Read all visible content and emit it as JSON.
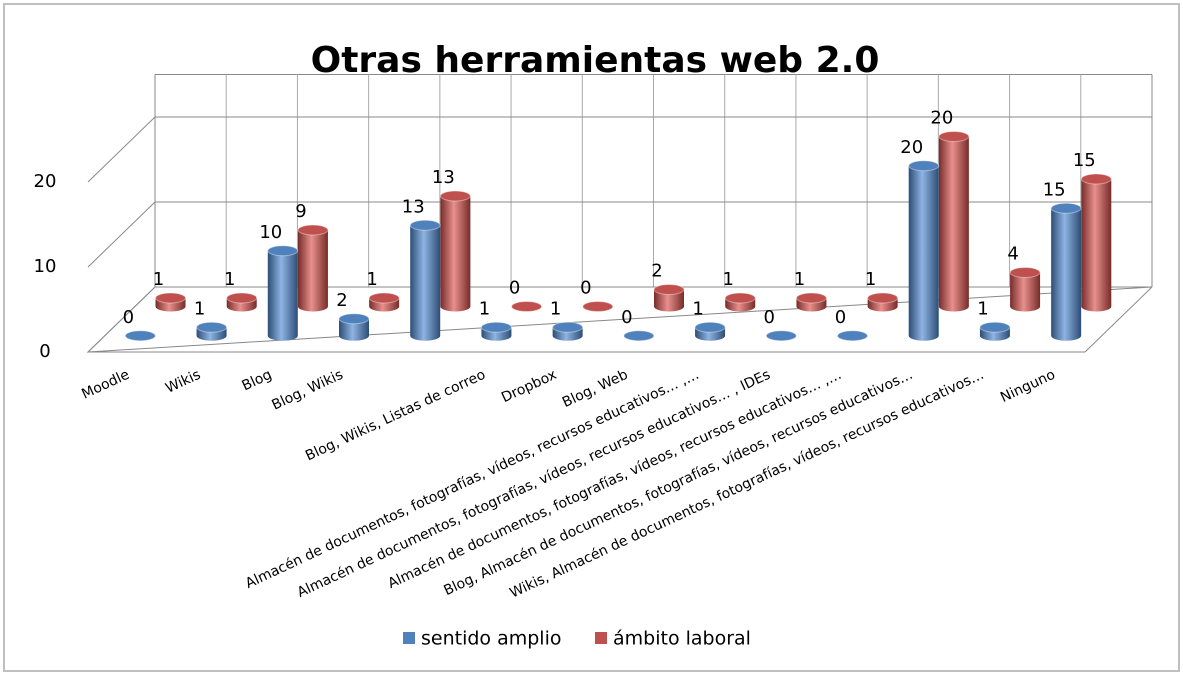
{
  "chart_data": {
    "type": "bar3d",
    "title": "Otras herramientas web 2.0",
    "categories": [
      "Moodle",
      "Wikis",
      "Blog",
      "Blog, Wikis",
      null,
      "Blog, Wikis, Listas de correo",
      "Dropbox",
      "Blog, Web",
      "Almacén de documentos, fotografías, vídeos, recursos educativos… ,…",
      "Almacén de documentos, fotografías, vídeos, recursos educativos… , IDEs",
      "Almacén de documentos, fotografías, vídeos, recursos educativos… ,…",
      "Blog, Almacén de documentos, fotografías, vídeos, recursos educativos…",
      "Wikis, Almacén de documentos, fotografías, vídeos, recursos educativos…",
      "Ninguno"
    ],
    "series": [
      {
        "name": "sentido amplio",
        "color": "#4f81bd",
        "values": [
          0,
          1,
          10,
          2,
          13,
          1,
          1,
          0,
          1,
          0,
          0,
          20,
          1,
          15
        ]
      },
      {
        "name": "ámbito laboral",
        "color": "#c0504d",
        "values": [
          1,
          1,
          9,
          1,
          13,
          0,
          0,
          2,
          1,
          1,
          1,
          20,
          4,
          15
        ]
      }
    ],
    "ylim": [
      0,
      25
    ],
    "yticks": [
      0,
      10,
      20
    ],
    "grid": true,
    "legend": "bottom"
  }
}
